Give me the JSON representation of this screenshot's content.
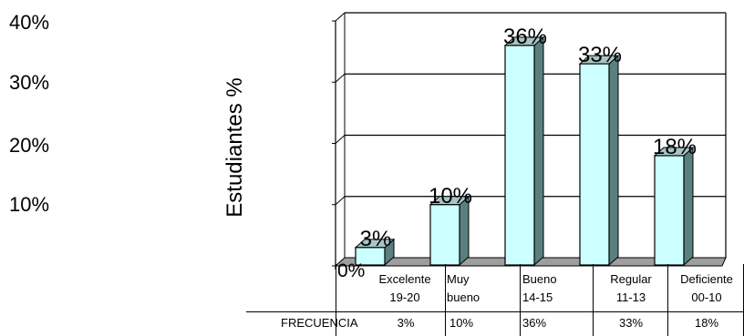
{
  "chart_data": {
    "type": "bar",
    "title": "",
    "xlabel": "",
    "ylabel": "Estudiantes %",
    "ylim": [
      0,
      40
    ],
    "y_ticks": [
      "40%",
      "30%",
      "20%",
      "10%"
    ],
    "zero_label": "0%",
    "categories": [
      {
        "line1": "Excelente",
        "line2": "19-20"
      },
      {
        "line1": "Muy",
        "line2": "bueno"
      },
      {
        "line1": "Bueno",
        "line2": "14-15"
      },
      {
        "line1": "Regular",
        "line2": "11-13"
      },
      {
        "line1": "Deficiente",
        "line2": "00-10"
      }
    ],
    "values": [
      3,
      10,
      36,
      33,
      18
    ],
    "data_labels": [
      "3%",
      "10%",
      "36%",
      "33%",
      "18%"
    ],
    "grid": true,
    "colors": {
      "bar_front": "#ccffff",
      "bar_side": "#5a7f7f",
      "bar_top": "#a8c4c4",
      "floor": "#9e9e9e"
    }
  },
  "table": {
    "row_label": "FRECUENCIA",
    "cells": [
      "3%",
      "10%",
      "36%",
      "33%",
      "18%"
    ]
  }
}
